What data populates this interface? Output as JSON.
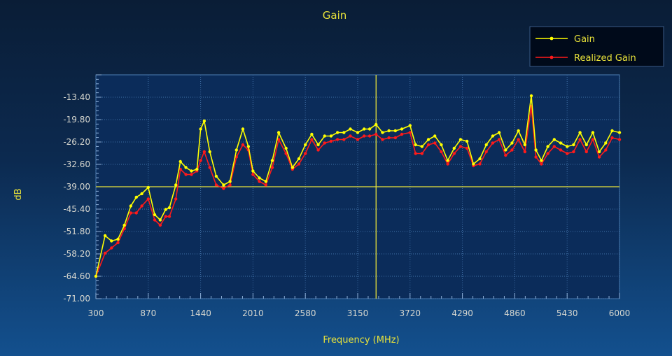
{
  "chart_data": {
    "type": "line",
    "title": "Gain",
    "xlabel": "Frequency (MHz)",
    "ylabel": "dB",
    "xlim": [
      300,
      6000
    ],
    "ylim": [
      -71.0,
      -7.0
    ],
    "x_ticks": [
      300,
      870,
      1440,
      2010,
      2580,
      3150,
      3720,
      4290,
      4860,
      5430,
      6000
    ],
    "x_tick_labels": [
      "300",
      "870",
      "1440",
      "2010",
      "2580",
      "3150",
      "3720",
      "4290",
      "4860",
      "5430",
      "6000"
    ],
    "y_ticks": [
      -71.0,
      -64.6,
      -58.2,
      -51.8,
      -45.4,
      -39.0,
      -32.6,
      -26.2,
      -19.8,
      -13.4
    ],
    "y_tick_labels": [
      "-71.00",
      "-64.60",
      "-58.20",
      "-51.80",
      "-45.40",
      "-39.00",
      "-32.60",
      "-26.20",
      "-19.80",
      "-13.40"
    ],
    "grid": true,
    "legend_position": "top-right",
    "marker_lines": {
      "x": 3350,
      "y": -39.0
    },
    "x": [
      300,
      400,
      470,
      540,
      610,
      680,
      740,
      800,
      870,
      940,
      1000,
      1060,
      1100,
      1170,
      1220,
      1280,
      1340,
      1400,
      1440,
      1480,
      1540,
      1610,
      1690,
      1760,
      1830,
      1900,
      1960,
      2010,
      2080,
      2150,
      2220,
      2290,
      2370,
      2440,
      2510,
      2580,
      2650,
      2720,
      2790,
      2860,
      2930,
      3000,
      3070,
      3150,
      3220,
      3280,
      3350,
      3420,
      3490,
      3560,
      3630,
      3720,
      3780,
      3850,
      3920,
      3990,
      4060,
      4130,
      4200,
      4270,
      4340,
      4410,
      4480,
      4550,
      4620,
      4690,
      4760,
      4830,
      4900,
      4970,
      5040,
      5090,
      5150,
      5220,
      5290,
      5360,
      5430,
      5500,
      5570,
      5640,
      5710,
      5780,
      5850,
      5920,
      6000
    ],
    "series": [
      {
        "name": "Gain",
        "color": "#ffff00",
        "values": [
          -64.6,
          -53.0,
          -54.5,
          -54.0,
          -50.0,
          -44.5,
          -42.0,
          -41.0,
          -39.2,
          -47.0,
          -48.5,
          -45.5,
          -45.0,
          -38.5,
          -31.8,
          -33.5,
          -34.5,
          -34.0,
          -22.5,
          -20.2,
          -29.0,
          -36.0,
          -38.5,
          -37.5,
          -28.5,
          -22.5,
          -27.5,
          -34.5,
          -36.5,
          -37.5,
          -31.5,
          -23.5,
          -28.0,
          -33.5,
          -31.0,
          -27.0,
          -24.0,
          -27.0,
          -24.5,
          -24.5,
          -23.5,
          -23.5,
          -22.5,
          -23.5,
          -22.5,
          -22.5,
          -21.2,
          -23.5,
          -23.0,
          -23.0,
          -22.5,
          -21.5,
          -27.0,
          -27.5,
          -25.5,
          -24.5,
          -27.0,
          -31.5,
          -28.0,
          -25.5,
          -26.0,
          -32.5,
          -31.0,
          -27.0,
          -24.5,
          -23.5,
          -28.5,
          -26.5,
          -23.0,
          -27.0,
          -13.0,
          -28.5,
          -31.5,
          -27.5,
          -25.5,
          -26.5,
          -27.5,
          -27.0,
          -23.5,
          -27.0,
          -23.5,
          -29.0,
          -26.5,
          -23.0,
          -23.5
        ]
      },
      {
        "name": "Realized Gain",
        "color": "#ff1a1a",
        "values": [
          -64.6,
          -58.0,
          -56.5,
          -55.0,
          -51.0,
          -46.5,
          -46.5,
          -44.5,
          -42.5,
          -48.5,
          -50.0,
          -47.5,
          -47.5,
          -42.5,
          -34.0,
          -35.5,
          -35.5,
          -34.5,
          -31.5,
          -29.0,
          -33.5,
          -38.5,
          -39.5,
          -38.5,
          -30.5,
          -27.0,
          -28.5,
          -35.5,
          -37.5,
          -38.5,
          -33.5,
          -25.5,
          -29.5,
          -34.0,
          -32.5,
          -29.5,
          -25.5,
          -28.5,
          -26.5,
          -26.0,
          -25.5,
          -25.5,
          -24.5,
          -25.5,
          -24.5,
          -24.5,
          -24.0,
          -25.5,
          -25.0,
          -25.0,
          -24.0,
          -23.5,
          -29.5,
          -29.5,
          -27.0,
          -26.5,
          -29.0,
          -32.5,
          -29.5,
          -27.5,
          -28.0,
          -33.0,
          -32.5,
          -29.0,
          -26.5,
          -25.5,
          -30.0,
          -28.5,
          -25.5,
          -29.0,
          -16.0,
          -30.5,
          -32.5,
          -29.5,
          -27.5,
          -28.5,
          -29.5,
          -29.0,
          -25.5,
          -29.0,
          -25.5,
          -30.5,
          -28.5,
          -25.0,
          -25.5
        ]
      }
    ]
  }
}
